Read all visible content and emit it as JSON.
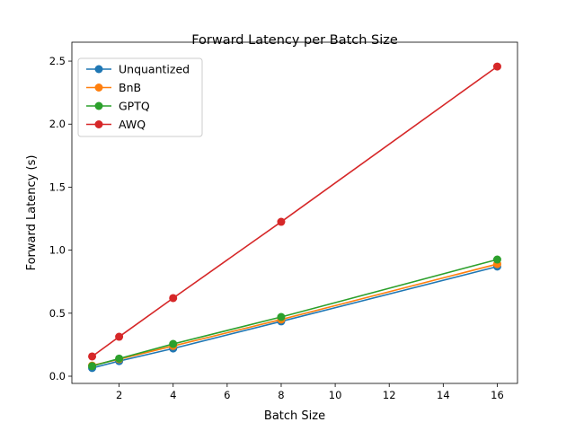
{
  "chart_data": {
    "type": "line",
    "title": "Forward Latency per Batch Size",
    "xlabel": "Batch Size",
    "ylabel": "Forward Latency (s)",
    "x": [
      1,
      2,
      4,
      8,
      16
    ],
    "xlim": [
      0.25,
      16.75
    ],
    "ylim": [
      -0.057,
      2.65
    ],
    "xticks": [
      2,
      4,
      6,
      8,
      10,
      12,
      14,
      16
    ],
    "yticks": [
      0.0,
      0.5,
      1.0,
      1.5,
      2.0,
      2.5
    ],
    "ytick_labels": [
      "0.0",
      "0.5",
      "1.0",
      "1.5",
      "2.0",
      "2.5"
    ],
    "grid": false,
    "legend_position": "top-left",
    "series": [
      {
        "name": "Unquantized",
        "color": "#1f77b4",
        "values": [
          0.065,
          0.12,
          0.22,
          0.435,
          0.87
        ]
      },
      {
        "name": "BnB",
        "color": "#ff7f0e",
        "values": [
          0.085,
          0.135,
          0.24,
          0.45,
          0.89
        ]
      },
      {
        "name": "GPTQ",
        "color": "#2ca02c",
        "values": [
          0.08,
          0.14,
          0.256,
          0.47,
          0.926
        ]
      },
      {
        "name": "AWQ",
        "color": "#d62728",
        "values": [
          0.157,
          0.313,
          0.62,
          1.225,
          2.457
        ]
      }
    ]
  }
}
